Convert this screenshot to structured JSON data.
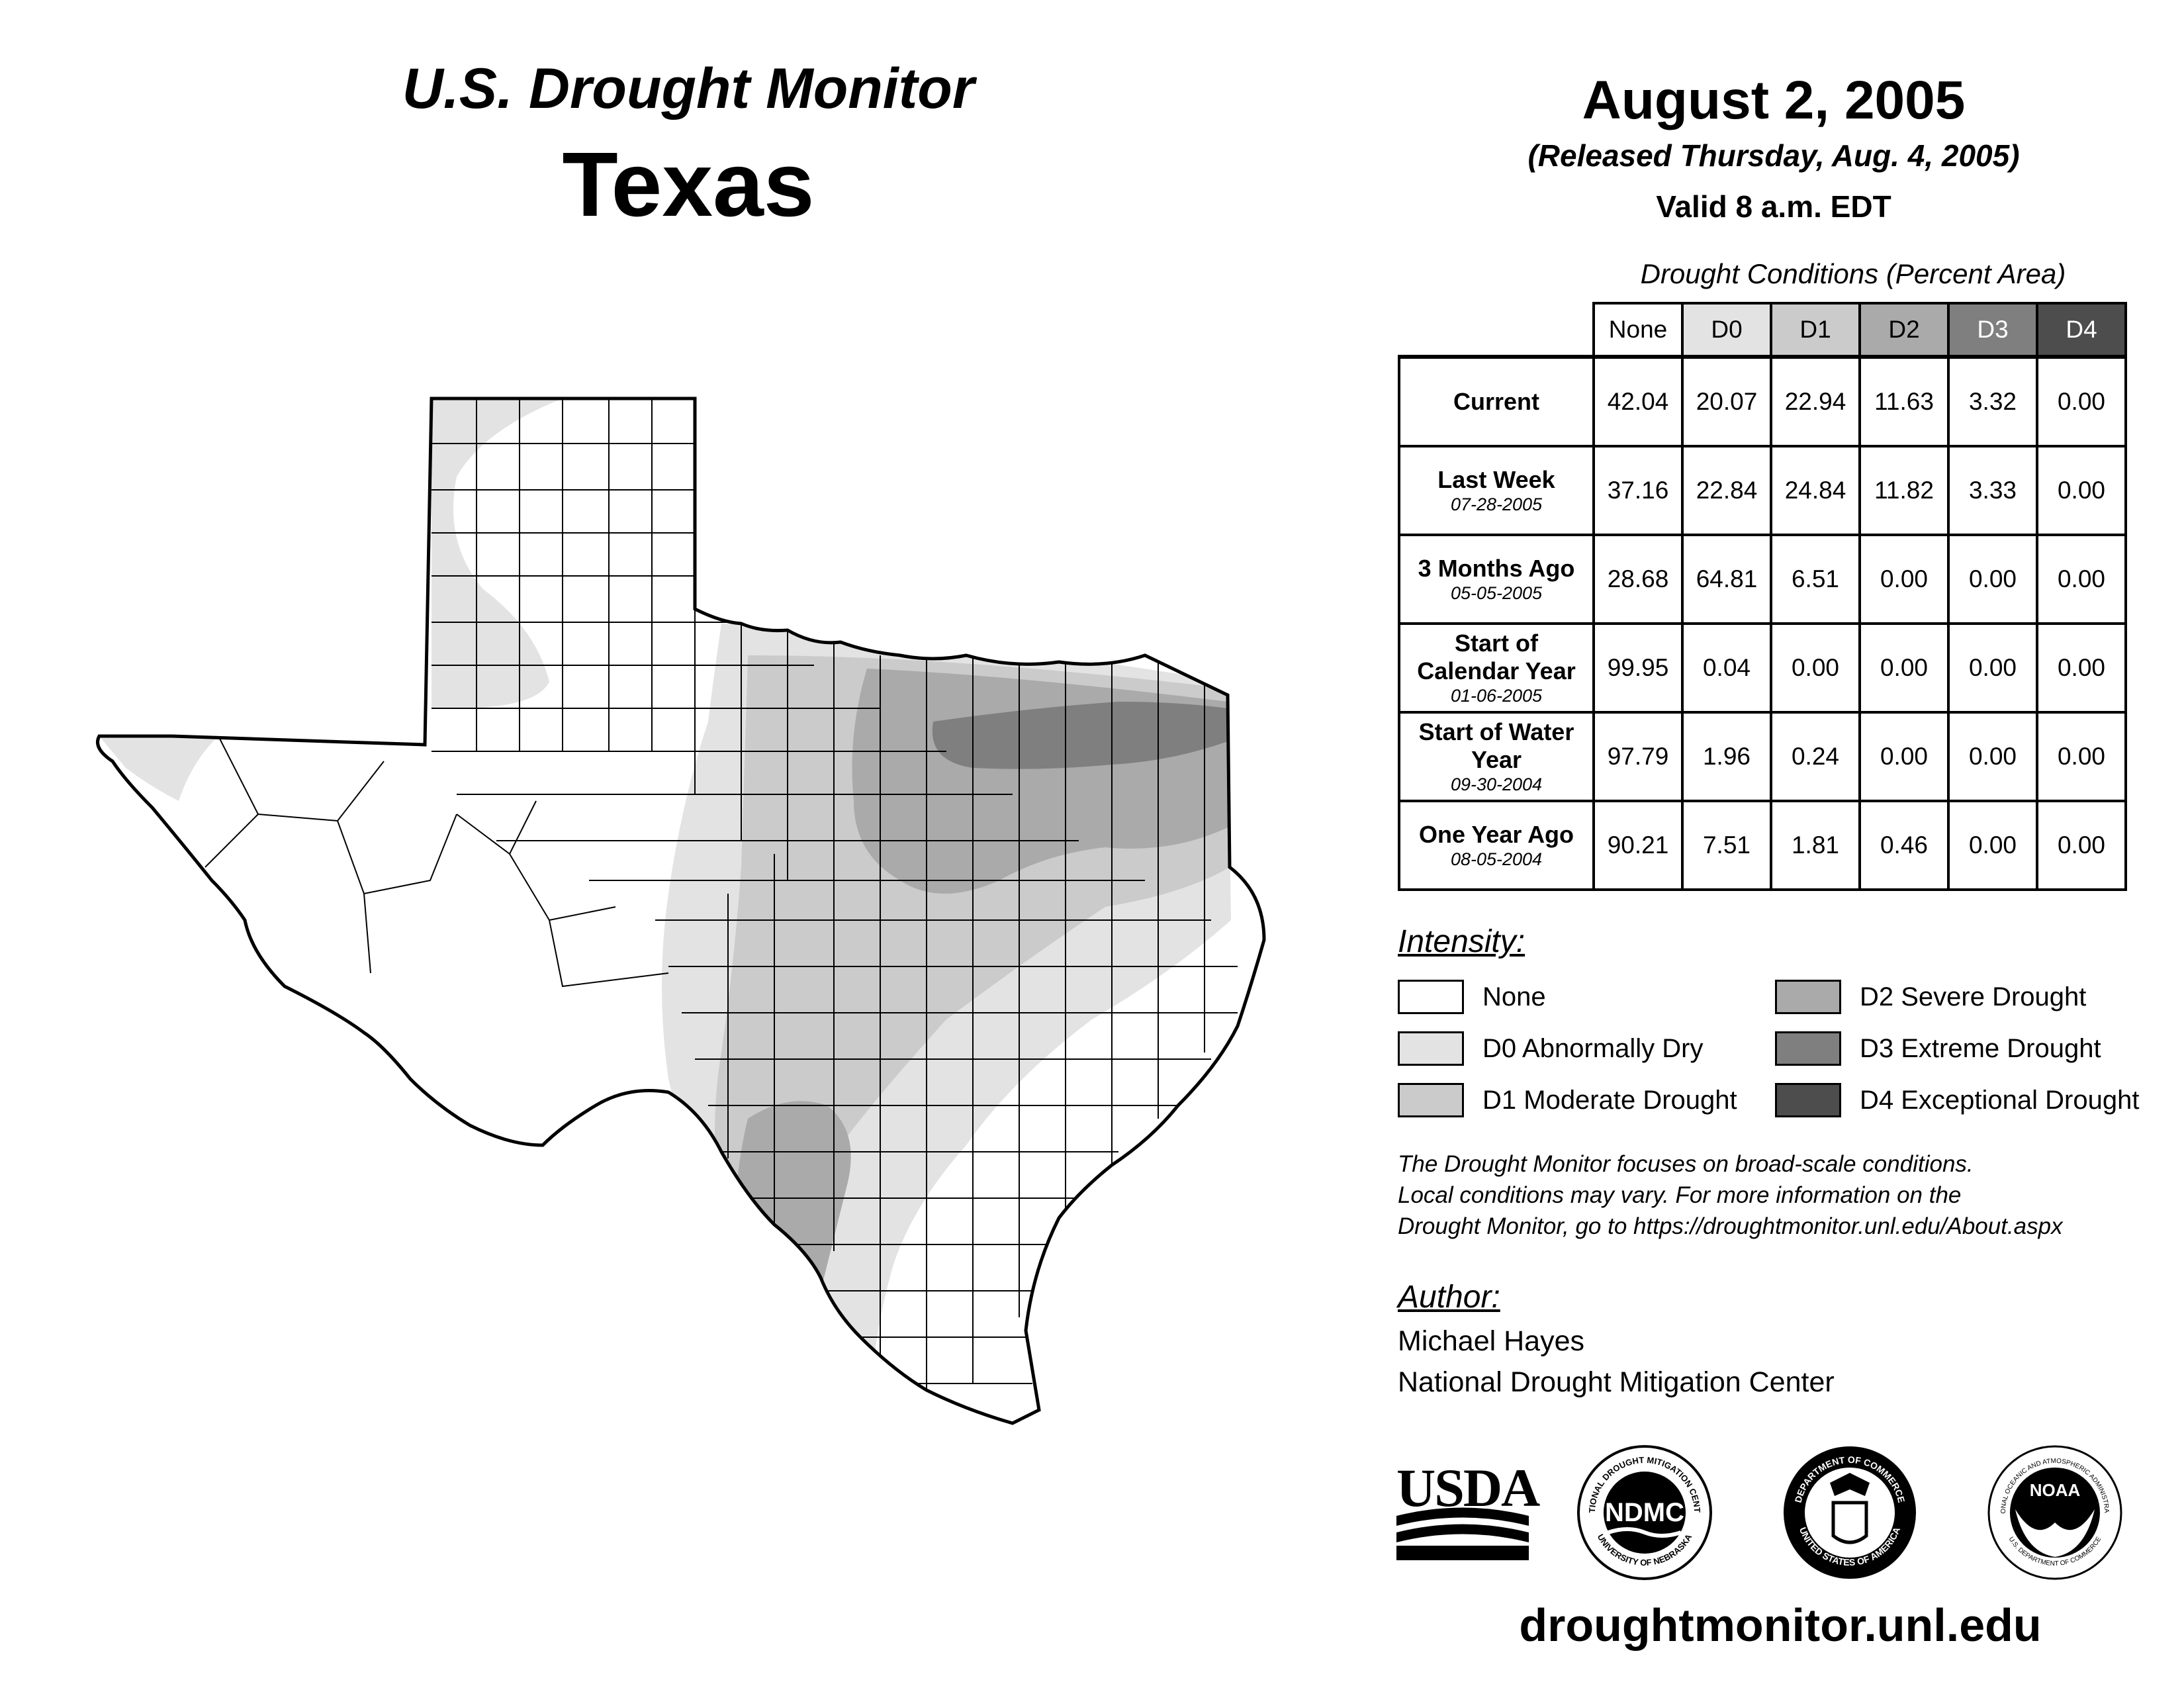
{
  "header": {
    "product": "U.S. Drought Monitor",
    "state": "Texas",
    "date": "August 2, 2005",
    "released": "(Released Thursday, Aug. 4, 2005)",
    "valid": "Valid 8 a.m. EDT"
  },
  "table": {
    "title": "Drought Conditions (Percent Area)",
    "columns": [
      "None",
      "D0",
      "D1",
      "D2",
      "D3",
      "D4"
    ],
    "column_colors": [
      "#ffffff",
      "#e3e3e3",
      "#cbcbcb",
      "#aaaaaa",
      "#7f7f7f",
      "#4d4d4d"
    ],
    "rows": [
      {
        "label": "Current",
        "date": "",
        "values": [
          "42.04",
          "20.07",
          "22.94",
          "11.63",
          "3.32",
          "0.00"
        ]
      },
      {
        "label": "Last Week",
        "date": "07-28-2005",
        "values": [
          "37.16",
          "22.84",
          "24.84",
          "11.82",
          "3.33",
          "0.00"
        ]
      },
      {
        "label": "3 Months Ago",
        "date": "05-05-2005",
        "values": [
          "28.68",
          "64.81",
          "6.51",
          "0.00",
          "0.00",
          "0.00"
        ]
      },
      {
        "label": "Start of Calendar Year",
        "date": "01-06-2005",
        "values": [
          "99.95",
          "0.04",
          "0.00",
          "0.00",
          "0.00",
          "0.00"
        ]
      },
      {
        "label": "Start of Water Year",
        "date": "09-30-2004",
        "values": [
          "97.79",
          "1.96",
          "0.24",
          "0.00",
          "0.00",
          "0.00"
        ]
      },
      {
        "label": "One Year Ago",
        "date": "08-05-2004",
        "values": [
          "90.21",
          "7.51",
          "1.81",
          "0.46",
          "0.00",
          "0.00"
        ]
      }
    ]
  },
  "legend": {
    "title": "Intensity:",
    "items": [
      {
        "label": "None",
        "color": "#ffffff"
      },
      {
        "label": "D0 Abnormally Dry",
        "color": "#e3e3e3"
      },
      {
        "label": "D1 Moderate Drought",
        "color": "#cbcbcb"
      },
      {
        "label": "D2 Severe Drought",
        "color": "#aaaaaa"
      },
      {
        "label": "D3 Extreme Drought",
        "color": "#7f7f7f"
      },
      {
        "label": "D4 Exceptional Drought",
        "color": "#4d4d4d"
      }
    ]
  },
  "note": {
    "line1": "The Drought Monitor focuses on broad-scale conditions.",
    "line2": "Local conditions may vary. For more information on the",
    "line3": "Drought Monitor, go to https://droughtmonitor.unl.edu/About.aspx"
  },
  "author": {
    "title": "Author:",
    "name": "Michael Hayes",
    "org": "National Drought Mitigation Center"
  },
  "logos": {
    "usda": "USDA",
    "ndmc": "NDMC",
    "ndmc_ring_top": "NATIONAL DROUGHT MITIGATION CENTER",
    "ndmc_ring_bottom": "UNIVERSITY OF NEBRASKA",
    "doc_ring_top": "DEPARTMENT OF COMMERCE",
    "doc_ring_bottom": "UNITED STATES OF AMERICA",
    "noaa": "NOAA",
    "noaa_ring_top": "NATIONAL OCEANIC AND ATMOSPHERIC ADMINISTRATION",
    "noaa_ring_bottom": "U.S. DEPARTMENT OF COMMERCE"
  },
  "footer": {
    "url": "droughtmonitor.unl.edu"
  }
}
